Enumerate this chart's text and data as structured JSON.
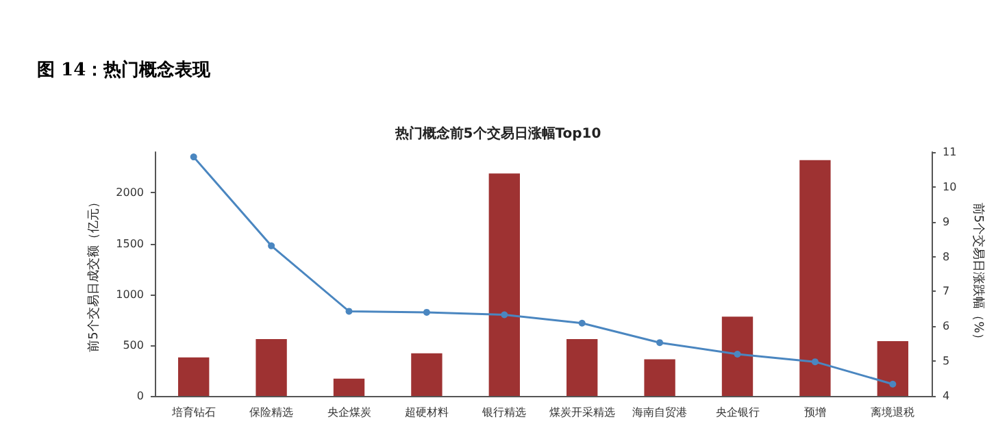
{
  "chart_data": {
    "type": "bar",
    "title": "图 14：热门概念表现",
    "subtitle": "热门概念前5个交易日涨幅Top10",
    "ylabel": "前5个交易日成交额（亿元）",
    "y2label": "前5个交易日涨跌幅（%）",
    "categories": [
      "培育钻石",
      "保险精选",
      "央企煤炭",
      "超硬材料",
      "银行精选",
      "煤炭开采精选",
      "海南自贸港",
      "央企银行",
      "预增",
      "离境退税"
    ],
    "series": [
      {
        "color": "#9e3232",
        "values": [
          380,
          560,
          170,
          420,
          2190,
          560,
          360,
          780,
          2320,
          540
        ]
      },
      {
        "type": "line",
        "axis": "y2",
        "color": "#4a86c0",
        "values": [
          10.86,
          8.31,
          6.43,
          6.4,
          6.33,
          6.09,
          5.53,
          5.2,
          4.98,
          4.34
        ]
      }
    ],
    "ylim": [
      0,
      2400
    ],
    "yticks": [
      0,
      500,
      1000,
      1500,
      2000
    ],
    "y2lim": [
      4,
      11
    ],
    "y2ticks": [
      4,
      5,
      6,
      7,
      8,
      9,
      10,
      11
    ],
    "grid": false,
    "marker": "circle",
    "line_style": "solid"
  }
}
